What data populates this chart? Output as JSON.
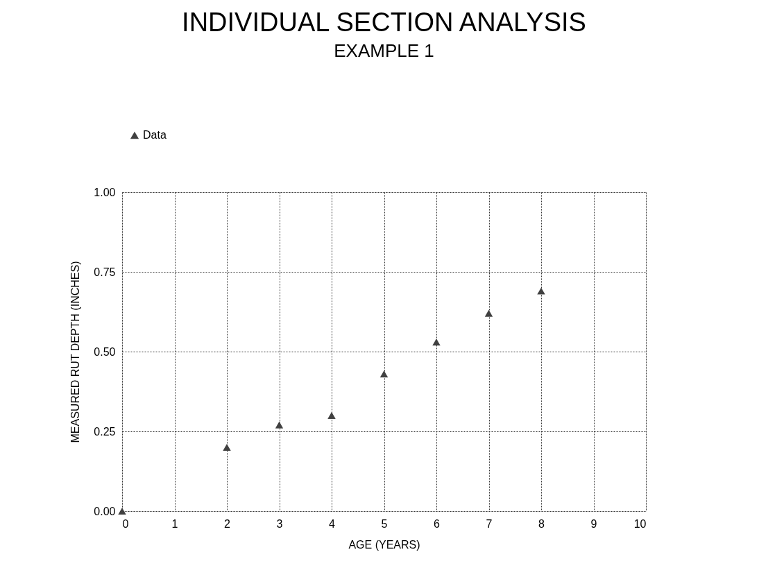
{
  "chart_data": {
    "type": "scatter",
    "title": "INDIVIDUAL SECTION ANALYSIS",
    "subtitle": "EXAMPLE 1",
    "xlabel": "AGE (YEARS)",
    "ylabel": "MEASURED RUT DEPTH (INCHES)",
    "x": [
      0,
      2,
      3,
      4,
      5,
      6,
      7,
      8
    ],
    "series": [
      {
        "name": "Data",
        "color": "#404040",
        "values": [
          0.0,
          0.2,
          0.27,
          0.3,
          0.43,
          0.53,
          0.62,
          0.69
        ]
      }
    ],
    "xlim": [
      0,
      10
    ],
    "xticks": [
      0,
      1,
      2,
      3,
      4,
      5,
      6,
      7,
      8,
      9,
      10
    ],
    "ylim": [
      0,
      1
    ],
    "yticks": [
      {
        "value": 0,
        "label": "0.00"
      },
      {
        "value": 0.25,
        "label": "0.25"
      },
      {
        "value": 0.5,
        "label": "0.50"
      },
      {
        "value": 0.75,
        "label": "0.75"
      },
      {
        "value": 1,
        "label": "1.00"
      }
    ],
    "grid": true,
    "legend": "top left",
    "marker": "triangle"
  }
}
